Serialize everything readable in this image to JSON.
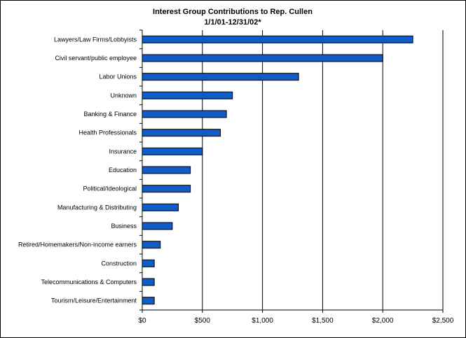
{
  "chart_data": {
    "type": "bar",
    "orientation": "horizontal",
    "title": "Interest Group Contributions to Rep. Cullen",
    "subtitle": "1/1/01-12/31/02*",
    "xlabel": "",
    "ylabel": "",
    "xlim": [
      0,
      2500
    ],
    "x_ticks": [
      "$0",
      "$500",
      "$1,000",
      "$1,500",
      "$2,000",
      "$2,500"
    ],
    "x_tick_values": [
      0,
      500,
      1000,
      1500,
      2000,
      2500
    ],
    "grid": "vertical",
    "legend": "none",
    "bar_color": "#0f5cc7",
    "categories": [
      "Lawyers/Law Firms/Lobbyists",
      "Civil servant/public employee",
      "Labor Unions",
      "Unknown",
      "Banking & Finance",
      "Health Professionals",
      "Insurance",
      "Education",
      "Political/Ideological",
      "Manufacturing & Distributing",
      "Business",
      "Retired/Homemakers/Non-income earners",
      "Construction",
      "Telecommunications & Computers",
      "Tourism/Leisure/Entertainment"
    ],
    "values": [
      2250,
      2000,
      1300,
      750,
      700,
      650,
      500,
      400,
      400,
      300,
      250,
      150,
      100,
      100,
      100
    ]
  }
}
